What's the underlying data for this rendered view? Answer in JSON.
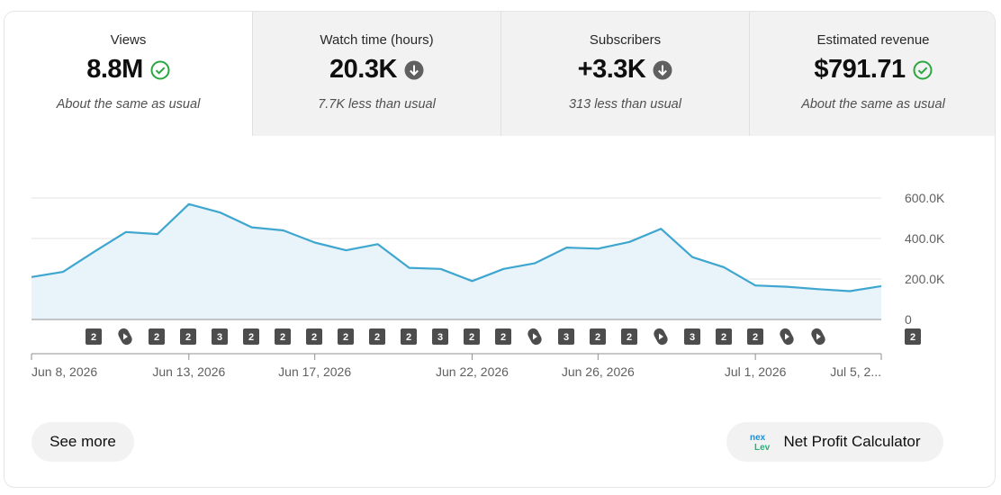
{
  "metrics": [
    {
      "label": "Views",
      "value": "8.8M",
      "status": "same",
      "subtitle": "About the same as usual",
      "selected": true
    },
    {
      "label": "Watch time (hours)",
      "value": "20.3K",
      "status": "down",
      "subtitle": "7.7K less than usual",
      "selected": false
    },
    {
      "label": "Subscribers",
      "value": "+3.3K",
      "status": "down",
      "subtitle": "313 less than usual",
      "selected": false
    },
    {
      "label": "Estimated revenue",
      "value": "$791.71",
      "status": "same",
      "subtitle": "About the same as usual",
      "selected": false
    }
  ],
  "colors": {
    "line": "#3ea6cf",
    "area": "#e8f4fa",
    "check": "#2ba640",
    "down": "#606060",
    "badge": "#4d4d4d"
  },
  "chart_data": {
    "type": "area",
    "series": [
      {
        "values": [
          210000,
          235000,
          335000,
          432000,
          422000,
          570000,
          528000,
          455000,
          440000,
          380000,
          342000,
          372000,
          255000,
          250000,
          190000,
          250000,
          278000,
          355000,
          350000,
          383000,
          448000,
          308000,
          258000,
          168000,
          162000,
          150000,
          140000,
          165000
        ]
      }
    ],
    "x_ticks": [
      "Jun 8, 2026",
      "Jun 13, 2026",
      "Jun 17, 2026",
      "Jun 22, 2026",
      "Jun 26, 2026",
      "Jul 1, 2026",
      "Jul 5, 2..."
    ],
    "y_ticks": [
      "600.0K",
      "400.0K",
      "200.0K",
      "0"
    ],
    "ylim": [
      0,
      600000
    ],
    "grid": true,
    "markers": [
      {
        "type": "count",
        "label": "2"
      },
      {
        "type": "shorts"
      },
      {
        "type": "count",
        "label": "2"
      },
      {
        "type": "count",
        "label": "2"
      },
      {
        "type": "count",
        "label": "3"
      },
      {
        "type": "count",
        "label": "2"
      },
      {
        "type": "count",
        "label": "2"
      },
      {
        "type": "count",
        "label": "2"
      },
      {
        "type": "count",
        "label": "2"
      },
      {
        "type": "count",
        "label": "2"
      },
      {
        "type": "count",
        "label": "2"
      },
      {
        "type": "count",
        "label": "3"
      },
      {
        "type": "count",
        "label": "2"
      },
      {
        "type": "count",
        "label": "2"
      },
      {
        "type": "shorts"
      },
      {
        "type": "count",
        "label": "3"
      },
      {
        "type": "count",
        "label": "2"
      },
      {
        "type": "count",
        "label": "2"
      },
      {
        "type": "shorts"
      },
      {
        "type": "count",
        "label": "3"
      },
      {
        "type": "count",
        "label": "2"
      },
      {
        "type": "count",
        "label": "2"
      },
      {
        "type": "shorts"
      },
      {
        "type": "shorts"
      },
      {
        "type": "count",
        "label": "2"
      }
    ]
  },
  "actions": {
    "see_more": "See more",
    "calculator": "Net Profit Calculator",
    "calculator_icon": "nexlev-logo"
  }
}
